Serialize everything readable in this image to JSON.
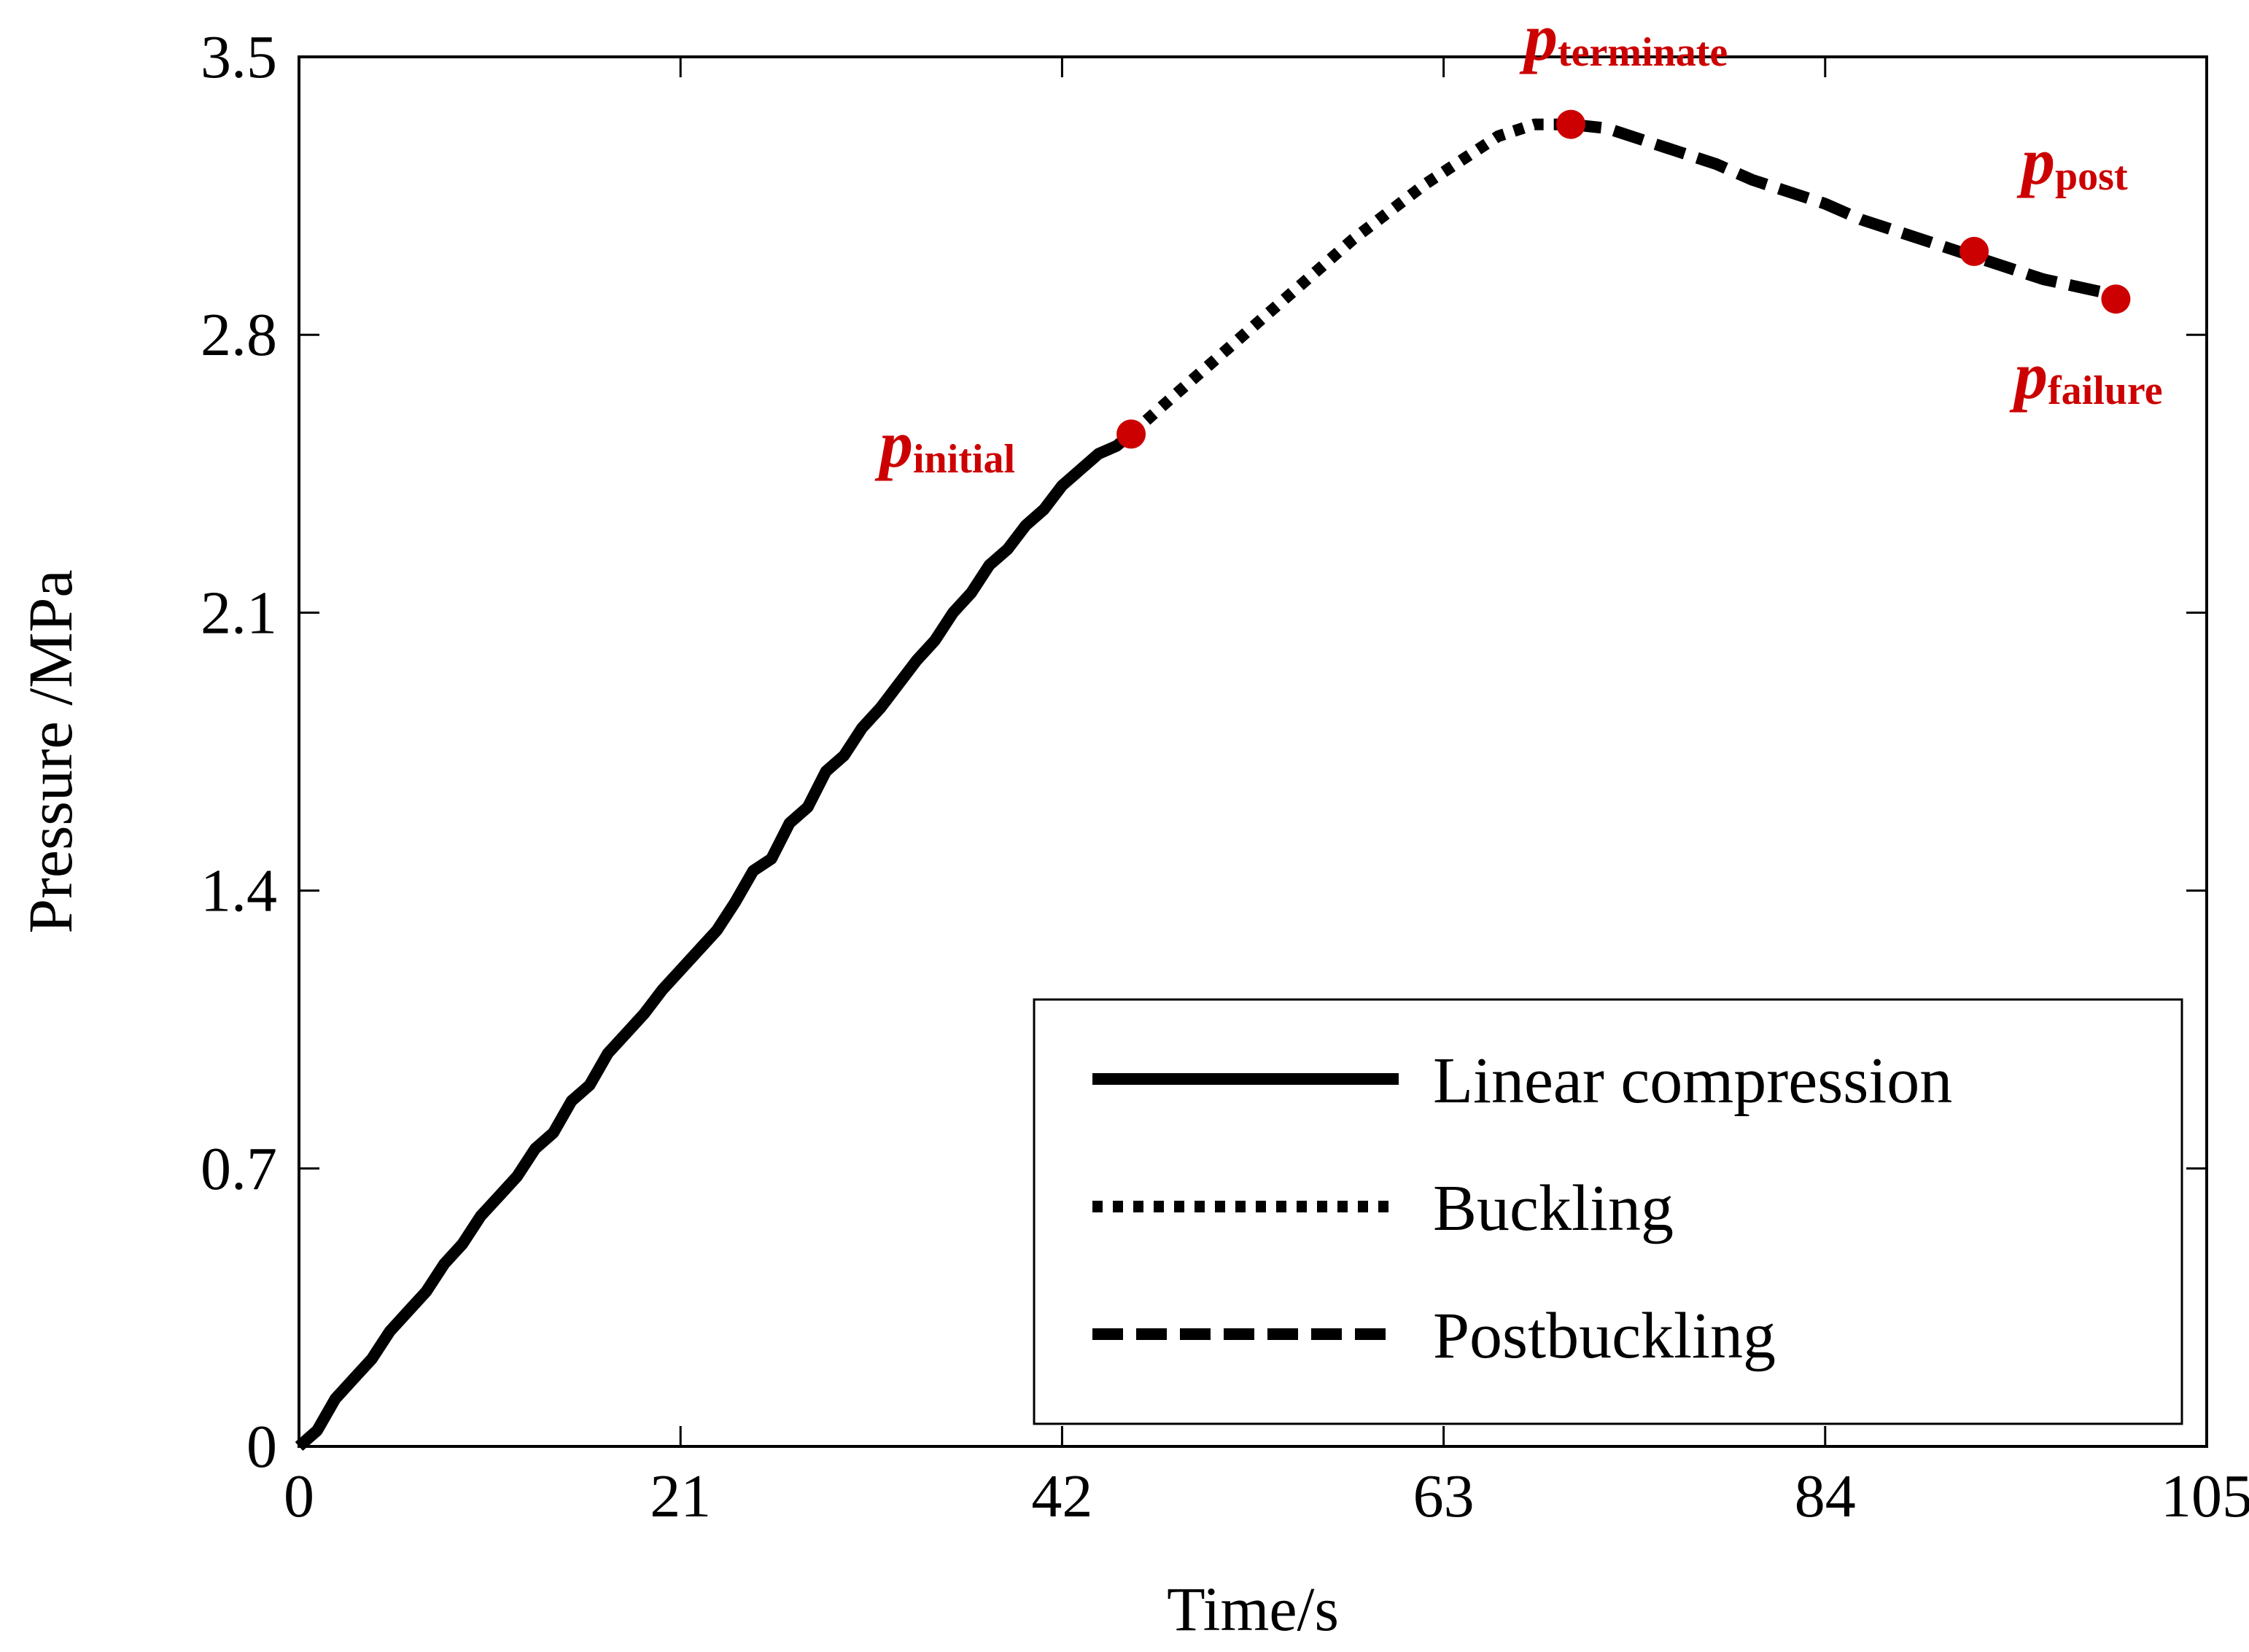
{
  "chart_data": {
    "type": "line",
    "title": "",
    "xlabel": "Time/s",
    "ylabel": "Pressure /MPa",
    "xlim": [
      0,
      105
    ],
    "ylim": [
      0,
      3.5
    ],
    "xticks": [
      "0",
      "21",
      "42",
      "63",
      "84",
      "105"
    ],
    "yticks": [
      "0",
      "0.7",
      "1.4",
      "2.1",
      "2.8",
      "3.5"
    ],
    "grid": false,
    "legend_position": "bottom-right",
    "series": [
      {
        "name": "Linear compression",
        "style": "solid",
        "x": [
          0,
          1,
          2,
          3,
          4,
          5,
          6,
          7,
          8,
          9,
          10,
          11,
          12,
          13,
          14,
          15,
          16,
          17,
          18,
          19,
          20,
          21,
          22,
          23,
          24,
          25,
          26,
          27,
          28,
          29,
          30,
          31,
          32,
          33,
          34,
          35,
          36,
          37,
          38,
          39,
          40,
          41,
          42,
          43,
          44,
          45,
          45.8
        ],
        "y": [
          0.0,
          0.04,
          0.12,
          0.17,
          0.22,
          0.29,
          0.34,
          0.39,
          0.46,
          0.51,
          0.58,
          0.63,
          0.68,
          0.75,
          0.79,
          0.87,
          0.91,
          0.99,
          1.04,
          1.09,
          1.15,
          1.2,
          1.25,
          1.3,
          1.37,
          1.45,
          1.48,
          1.57,
          1.61,
          1.7,
          1.74,
          1.81,
          1.86,
          1.92,
          1.98,
          2.03,
          2.1,
          2.15,
          2.22,
          2.26,
          2.32,
          2.36,
          2.42,
          2.46,
          2.5,
          2.52,
          2.55
        ]
      },
      {
        "name": "Buckling",
        "style": "dotted",
        "x": [
          45.8,
          48,
          50,
          52,
          54,
          56,
          58,
          60,
          62,
          64,
          66,
          68,
          70
        ],
        "y": [
          2.55,
          2.64,
          2.72,
          2.8,
          2.88,
          2.96,
          3.04,
          3.11,
          3.18,
          3.24,
          3.3,
          3.33,
          3.33
        ]
      },
      {
        "name": "Postbuckling",
        "style": "dashed",
        "x": [
          70,
          72,
          74,
          76,
          78,
          80,
          82,
          84,
          86,
          88,
          90,
          92,
          94,
          96,
          98,
          100
        ],
        "y": [
          3.33,
          3.32,
          3.29,
          3.26,
          3.23,
          3.19,
          3.16,
          3.13,
          3.09,
          3.06,
          3.03,
          3.0,
          2.97,
          2.94,
          2.92,
          2.9
        ]
      }
    ],
    "annotations": [
      {
        "name": "initial",
        "prefix": "p",
        "subscript": "initial",
        "x": 45.8,
        "y": 2.55,
        "color": "#cc0000",
        "label_side": "upper-left"
      },
      {
        "name": "terminate",
        "prefix": "p",
        "subscript": "terminate",
        "x": 70,
        "y": 3.33,
        "color": "#cc0000",
        "label_side": "above"
      },
      {
        "name": "post",
        "prefix": "p",
        "subscript": "post",
        "x": 92.2,
        "y": 3.01,
        "color": "#cc0000",
        "label_side": "upper-right"
      },
      {
        "name": "failure",
        "prefix": "p",
        "subscript": "failure",
        "x": 100,
        "y": 2.89,
        "color": "#cc0000",
        "label_side": "below"
      }
    ]
  },
  "colors": {
    "line": "#000000",
    "marker": "#cc0000",
    "background": "#ffffff"
  }
}
